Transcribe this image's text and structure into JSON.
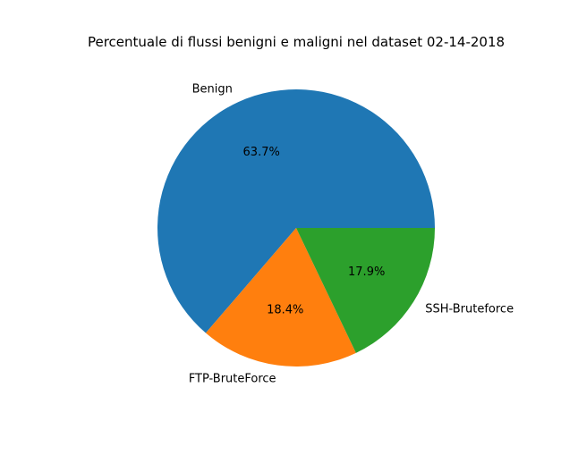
{
  "chart_data": {
    "type": "pie",
    "title": "Percentuale di flussi benigni e maligni nel dataset 02-14-2018",
    "start_angle_deg": 0,
    "direction": "counterclockwise",
    "slices": [
      {
        "label": "Benign",
        "percent_label": "63.7%",
        "value": 63.7,
        "color": "#1f77b4"
      },
      {
        "label": "FTP-BruteForce",
        "percent_label": "18.4%",
        "value": 18.4,
        "color": "#ff7f0e"
      },
      {
        "label": "SSH-Bruteforce",
        "percent_label": "17.9%",
        "value": 17.9,
        "color": "#2ca02c"
      }
    ]
  }
}
